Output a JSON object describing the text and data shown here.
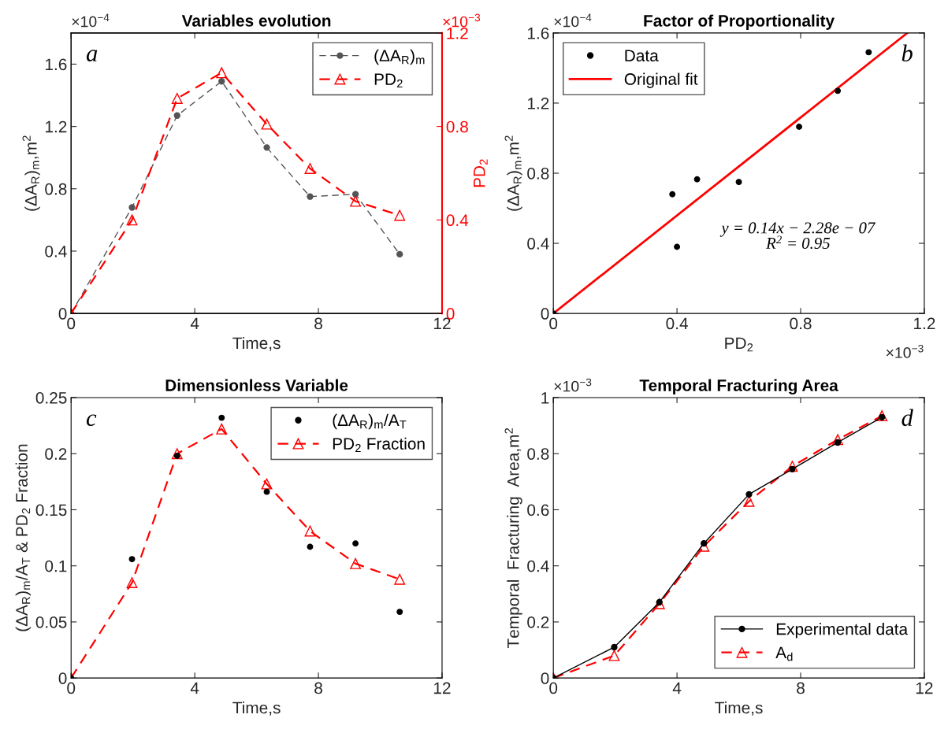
{
  "chart_data": [
    {
      "type": "line",
      "title": "Variables evolution",
      "xlabel": "Time,s",
      "ylabel": "(ΔA$_{R}$)$_{m}$,m$^{2}$",
      "y2label": "PD$_{2}$",
      "x": [
        0,
        1.97,
        3.43,
        4.87,
        6.33,
        7.73,
        9.2,
        10.63
      ],
      "series": [
        {
          "name": "(ΔA$_{R}$)$_{m}$",
          "color": "#555555",
          "marker": "circle",
          "line_style": "dashed",
          "values": [
            0,
            0.68,
            1.27,
            1.49,
            1.065,
            0.75,
            0.765,
            0.38
          ]
        },
        {
          "name": "PD$_{2}$",
          "color": "#ff0000",
          "marker": "triangle",
          "line_style": "dashed",
          "axis": "y2",
          "values": [
            0,
            0.4,
            0.92,
            1.03,
            0.81,
            0.62,
            0.48,
            0.42
          ]
        }
      ],
      "xlim": [
        0,
        12
      ],
      "xticks": [
        0,
        4,
        8,
        12
      ],
      "ylim": [
        0,
        1.8
      ],
      "yticks": [
        0,
        0.4,
        0.8,
        1.2,
        1.6
      ],
      "y2lim": [
        0,
        1.2
      ],
      "y2ticks": [
        0,
        0.4,
        0.8,
        1.2
      ],
      "legend": "top right",
      "grid": false,
      "annotations": [
        "×10$^{−4}$",
        "×10$^{−3}$",
        "a"
      ]
    },
    {
      "type": "scatter",
      "title": "Factor of Proportionality",
      "xlabel": "PD$_{2}$",
      "ylabel": "(ΔA$_{R}$)$_{m}$,m$^{2}$",
      "x": [
        0,
        0.385,
        0.4,
        0.465,
        0.6,
        0.795,
        0.92,
        1.02
      ],
      "series": [
        {
          "name": "Data",
          "type": "scatter",
          "color": "#000000",
          "marker": "circle",
          "values": [
            0,
            0.68,
            0.38,
            0.765,
            0.75,
            1.065,
            1.27,
            1.49
          ]
        },
        {
          "name": "Original fit",
          "type": "line",
          "color": "#ff0000",
          "marker": "none",
          "line_style": "solid",
          "x": [
            0,
            1.145
          ],
          "values": [
            0,
            1.6
          ]
        }
      ],
      "xlim": [
        0,
        1.2
      ],
      "xticks": [
        0,
        0.4,
        0.8,
        1.2
      ],
      "ylim": [
        0,
        1.6
      ],
      "yticks": [
        0,
        0.4,
        0.8,
        1.2,
        1.6
      ],
      "legend": "top left",
      "grid": false,
      "annotations": [
        "×10$^{−4}$",
        "×10$^{−3}$",
        "b",
        "y = 0.14x − 2.28e − 07",
        "R$^{2}$ = 0.95"
      ]
    },
    {
      "type": "line",
      "title": "Dimensionless Variable",
      "xlabel": "Time,s",
      "ylabel": "(ΔA$_{R}$)$_{m}$/A$_{T}$ & PD$_{2}$ Fraction",
      "x": [
        0,
        1.97,
        3.43,
        4.87,
        6.33,
        7.73,
        9.2,
        10.63
      ],
      "series": [
        {
          "name": "(ΔA$_{R}$)$_{m}$/A$_{T}$",
          "type": "scatter",
          "color": "#000000",
          "marker": "circle",
          "values": [
            0,
            0.106,
            0.198,
            0.232,
            0.166,
            0.117,
            0.12,
            0.059
          ]
        },
        {
          "name": "PD$_{2}$ Fraction",
          "color": "#ff0000",
          "marker": "triangle",
          "line_style": "dashed",
          "values": [
            0,
            0.085,
            0.2,
            0.222,
            0.173,
            0.131,
            0.102,
            0.088
          ]
        }
      ],
      "xlim": [
        0,
        12
      ],
      "xticks": [
        0,
        4,
        8,
        12
      ],
      "ylim": [
        0,
        0.25
      ],
      "yticks": [
        0,
        0.05,
        0.1,
        0.15,
        0.2,
        0.25
      ],
      "legend": "top right",
      "grid": false,
      "annotations": [
        "c"
      ]
    },
    {
      "type": "line",
      "title": "Temporal Fracturing Area",
      "xlabel": "Time,s",
      "ylabel": "Temporal  Fracturing  Area,m$^{2}$",
      "x": [
        0,
        1.97,
        3.43,
        4.87,
        6.33,
        7.73,
        9.2,
        10.63
      ],
      "series": [
        {
          "name": "Experimental data",
          "color": "#000000",
          "marker": "circle",
          "line_style": "solid",
          "values": [
            0,
            0.11,
            0.27,
            0.48,
            0.655,
            0.745,
            0.84,
            0.93
          ]
        },
        {
          "name": "A$_{d}$",
          "color": "#ff0000",
          "marker": "triangle",
          "line_style": "dashed",
          "values": [
            0,
            0.08,
            0.265,
            0.47,
            0.63,
            0.755,
            0.85,
            0.935
          ]
        }
      ],
      "xlim": [
        0,
        12
      ],
      "xticks": [
        0,
        4,
        8,
        12
      ],
      "ylim": [
        0,
        1
      ],
      "yticks": [
        0,
        0.2,
        0.4,
        0.6,
        0.8,
        1
      ],
      "legend": "bottom right",
      "grid": false,
      "annotations": [
        "×10$^{−3}$",
        "d"
      ]
    }
  ]
}
